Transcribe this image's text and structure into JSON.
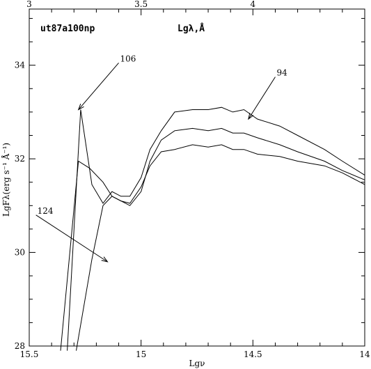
{
  "chart_data": {
    "type": "line",
    "title": "ut87a100np",
    "top_axis_label": "Lgλ,Å",
    "xlabel": "Lgν",
    "ylabel": "LgFλ(erg s⁻¹ Å⁻¹)",
    "xlim": [
      15.5,
      14
    ],
    "ylim": [
      28,
      35.2
    ],
    "top_axis_range": [
      3,
      4.5
    ],
    "grid": false,
    "x_ticks": [
      "15.5",
      "15",
      "14.5",
      "14"
    ],
    "y_ticks": [
      "28",
      "30",
      "32",
      "34"
    ],
    "top_ticks": [
      "3",
      "3.5",
      "4"
    ],
    "series": [
      {
        "x": [
          15.33,
          15.27,
          15.22,
          15.17,
          15.13,
          15.09,
          15.05,
          15.0,
          14.96,
          14.91,
          14.85,
          14.77,
          14.7,
          14.64,
          14.59,
          14.54,
          14.48,
          14.38,
          14.3,
          14.18,
          14.1,
          14.0
        ],
        "y": [
          27.9,
          33.05,
          31.45,
          31.05,
          31.3,
          31.2,
          31.2,
          31.6,
          32.2,
          32.6,
          33.0,
          33.05,
          33.05,
          33.1,
          33.0,
          33.05,
          32.85,
          32.7,
          32.5,
          32.2,
          31.95,
          31.65
        ]
      },
      {
        "x": [
          15.29,
          15.22,
          15.17,
          15.13,
          15.09,
          15.05,
          15.0,
          14.96,
          14.91,
          14.85,
          14.77,
          14.7,
          14.64,
          14.59,
          14.54,
          14.48,
          14.38,
          14.3,
          14.18,
          14.1,
          14.0
        ],
        "y": [
          27.9,
          29.85,
          31.0,
          31.2,
          31.1,
          31.0,
          31.3,
          31.95,
          32.4,
          32.6,
          32.65,
          32.6,
          32.65,
          32.55,
          32.55,
          32.45,
          32.3,
          32.15,
          31.95,
          31.75,
          31.55
        ]
      },
      {
        "x": [
          15.36,
          15.28,
          15.23,
          15.17,
          15.13,
          15.09,
          15.05,
          15.0,
          14.96,
          14.91,
          14.85,
          14.77,
          14.7,
          14.64,
          14.59,
          14.54,
          14.48,
          14.38,
          14.3,
          14.18,
          14.1,
          14.0
        ],
        "y": [
          27.9,
          31.95,
          31.8,
          31.5,
          31.2,
          31.1,
          31.05,
          31.4,
          31.85,
          32.15,
          32.2,
          32.3,
          32.25,
          32.3,
          32.2,
          32.2,
          32.1,
          32.05,
          31.95,
          31.85,
          31.7,
          31.45
        ]
      }
    ],
    "annotations": [
      {
        "text": "106",
        "x": 15.28,
        "y": 33.05,
        "label_x": 15.1,
        "label_y": 34.05
      },
      {
        "text": "94",
        "x": 14.52,
        "y": 32.85,
        "label_x": 14.4,
        "label_y": 33.75
      },
      {
        "text": "124",
        "x": 15.15,
        "y": 29.8,
        "label_x": 15.47,
        "label_y": 30.8
      }
    ]
  }
}
